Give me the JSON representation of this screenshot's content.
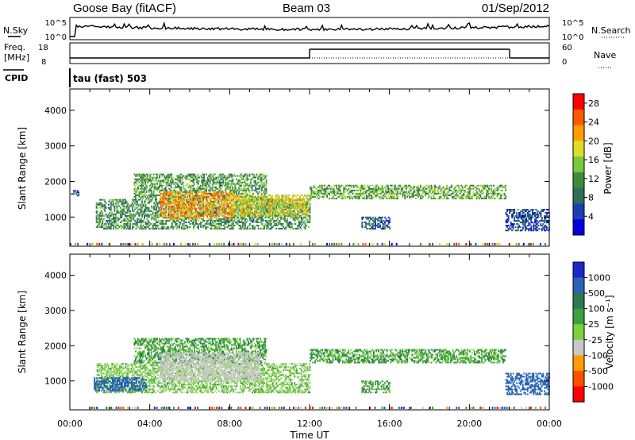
{
  "header": {
    "station": "Goose Bay (fitACF)",
    "beam": "Beam 03",
    "date": "01/Sep/2012"
  },
  "noise_panel": {
    "left_label": "N.Sky",
    "right_label": "N.Search",
    "left_ticks": [
      "10^5",
      "10^0"
    ],
    "right_ticks": [
      "10^5",
      "10^0"
    ]
  },
  "freq_panel": {
    "left_label_1": "Freq.",
    "left_label_2": "[MHz]",
    "right_label": "Nave",
    "left_ticks": [
      "18",
      "8"
    ],
    "right_ticks": [
      "60",
      "0"
    ]
  },
  "cpid": {
    "label": "CPID",
    "text": "tau (fast) 503"
  },
  "x_axis": {
    "title": "Time UT",
    "ticks": [
      "00:00",
      "04:00",
      "08:00",
      "12:00",
      "16:00",
      "20:00",
      "00:00"
    ]
  },
  "colors": {
    "axis": "#000000",
    "power_scale": [
      "#0000e0",
      "#1e3cb4",
      "#2e6e5a",
      "#3c8c3c",
      "#7ac83c",
      "#e0dc28",
      "#ff9c00",
      "#ff5a00",
      "#ff0000"
    ],
    "velocity_scale": [
      "#1e28c8",
      "#2864b4",
      "#2e7850",
      "#3ca03c",
      "#7ad23c",
      "#c8c8c8",
      "#ff9c00",
      "#ff5000",
      "#ff0000"
    ],
    "ground_scatter": "#bcbcbc"
  },
  "chart_data": [
    {
      "type": "heatmap",
      "name": "power",
      "ylabel": "Slant Range [km]",
      "xlabel": "",
      "ylim": [
        180,
        4600
      ],
      "xlim": [
        0,
        24
      ],
      "yticks": [
        "1000",
        "2000",
        "3000",
        "4000"
      ],
      "colorbar": {
        "title": "Power [dB]",
        "ticks": [
          "4",
          "8",
          "12",
          "16",
          "20",
          "24",
          "28"
        ],
        "range": [
          0,
          30
        ]
      },
      "regions": [
        {
          "t0": 0.05,
          "t1": 0.45,
          "r0": 1580,
          "r1": 1760,
          "v": 6
        },
        {
          "t0": 1.3,
          "t1": 12.0,
          "r0": 650,
          "r1": 1500,
          "v": 11
        },
        {
          "t0": 3.2,
          "t1": 9.8,
          "r0": 1500,
          "r1": 2200,
          "v": 12
        },
        {
          "t0": 4.5,
          "t1": 8.2,
          "r0": 950,
          "r1": 1700,
          "v": 22
        },
        {
          "t0": 8.0,
          "t1": 12.0,
          "r0": 1000,
          "r1": 1600,
          "v": 18
        },
        {
          "t0": 12.0,
          "t1": 21.8,
          "r0": 1500,
          "r1": 1900,
          "v": 13
        },
        {
          "t0": 14.6,
          "t1": 16.0,
          "r0": 650,
          "r1": 1000,
          "v": 7
        },
        {
          "t0": 21.8,
          "t1": 24.0,
          "r0": 600,
          "r1": 1200,
          "v": 6
        }
      ]
    },
    {
      "type": "heatmap",
      "name": "velocity",
      "ylabel": "Slant Range [km]",
      "xlabel": "Time UT",
      "ylim": [
        180,
        4600
      ],
      "xlim": [
        0,
        24
      ],
      "yticks": [
        "1000",
        "2000",
        "3000",
        "4000"
      ],
      "colorbar": {
        "title": "Velocity [m s⁻¹]",
        "ticks": [
          "1000",
          "500",
          "100",
          "25",
          "-25",
          "-100",
          "-500",
          "-1000"
        ],
        "range": [
          -1000,
          1000
        ]
      },
      "regions": [
        {
          "t0": 1.3,
          "t1": 12.0,
          "r0": 650,
          "r1": 1500,
          "v": -60
        },
        {
          "t0": 1.2,
          "t1": 3.8,
          "r0": 700,
          "r1": 1100,
          "v": 250
        },
        {
          "t0": 3.2,
          "t1": 9.8,
          "r0": 1500,
          "r1": 2200,
          "v": 0
        },
        {
          "t0": 4.5,
          "t1": 9.5,
          "r0": 1000,
          "r1": 1800,
          "v": -300
        },
        {
          "t0": 12.0,
          "t1": 21.8,
          "r0": 1500,
          "r1": 1900,
          "v": 0
        },
        {
          "t0": 14.6,
          "t1": 16.0,
          "r0": 650,
          "r1": 1000,
          "v": 0
        },
        {
          "t0": 21.8,
          "t1": 24.0,
          "r0": 600,
          "r1": 1200,
          "v": 200
        }
      ]
    }
  ]
}
